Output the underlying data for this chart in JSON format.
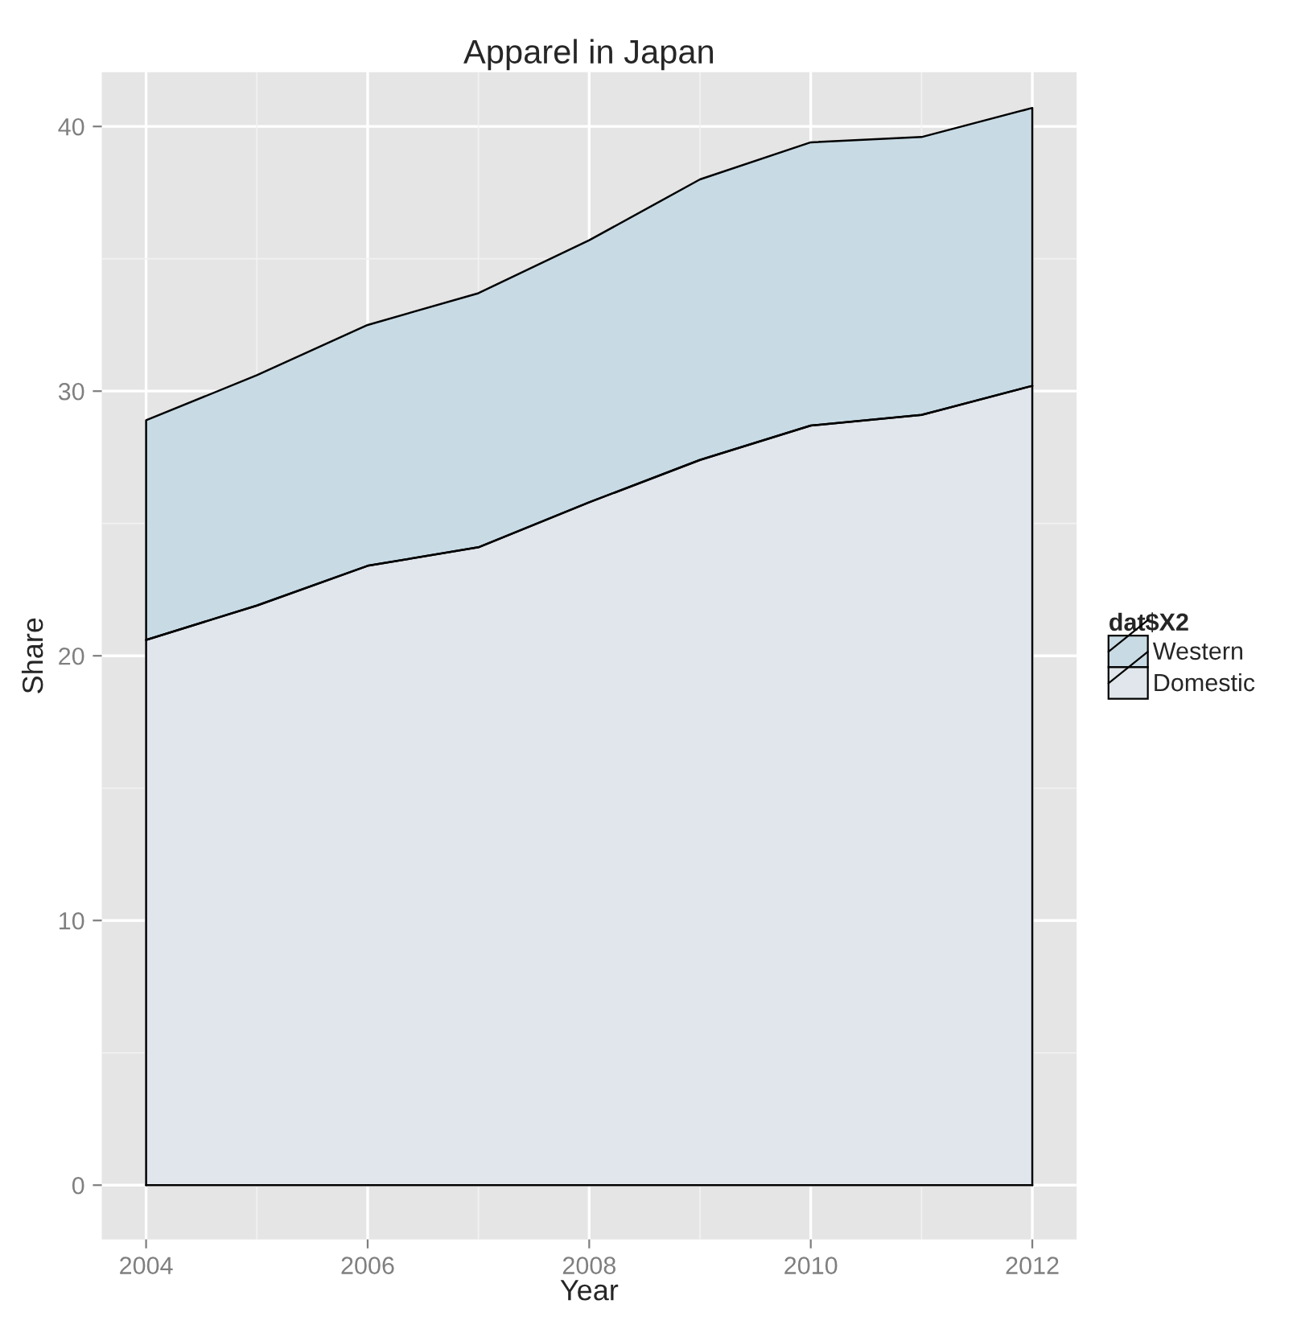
{
  "chart_data": {
    "type": "area",
    "title": "Apparel in Japan",
    "xlabel": "Year",
    "ylabel": "Share",
    "legend_title": "dat$X2",
    "x": [
      2004,
      2005,
      2006,
      2007,
      2008,
      2009,
      2010,
      2011,
      2012
    ],
    "stacked": true,
    "series": [
      {
        "name": "Domestic",
        "color": "#e0e6eb",
        "values": [
          20.6,
          21.9,
          23.4,
          24.1,
          25.8,
          27.4,
          28.7,
          29.1,
          30.2
        ]
      },
      {
        "name": "Western",
        "color": "#c8dbe5",
        "values": [
          8.3,
          8.7,
          9.1,
          9.6,
          9.9,
          10.6,
          10.7,
          10.5,
          10.5
        ]
      }
    ],
    "xlim": [
      2003.6,
      2012.4
    ],
    "xticks": [
      2004,
      2006,
      2008,
      2010,
      2012
    ],
    "ylim": [
      -2.05,
      42.05
    ],
    "yticks": [
      0,
      10,
      20,
      30,
      40
    ],
    "grid": true,
    "legend": "right"
  }
}
